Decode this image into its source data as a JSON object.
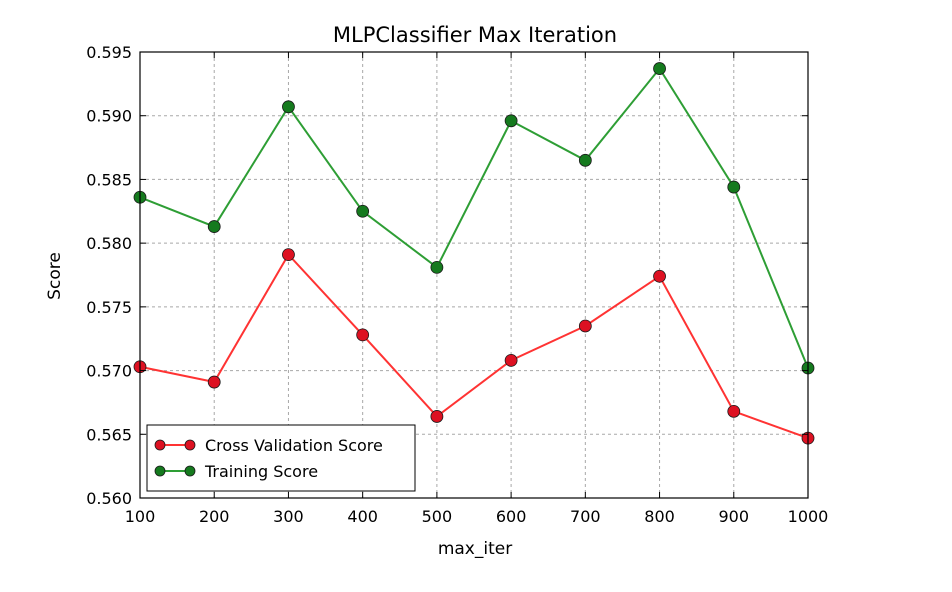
{
  "chart_data": {
    "type": "line",
    "title": "MLPClassifier Max Iteration",
    "xlabel": "max_iter",
    "ylabel": "Score",
    "xlim": [
      100,
      1000
    ],
    "ylim": [
      0.56,
      0.595
    ],
    "x": [
      100,
      200,
      300,
      400,
      500,
      600,
      700,
      800,
      900,
      1000
    ],
    "xticks": [
      100,
      200,
      300,
      400,
      500,
      600,
      700,
      800,
      900,
      1000
    ],
    "yticks": [
      "0.560",
      "0.565",
      "0.570",
      "0.575",
      "0.580",
      "0.585",
      "0.590",
      "0.595"
    ],
    "grid": true,
    "legend_position": "lower-left",
    "series": [
      {
        "name": "Cross Validation Score",
        "color": "#ff3333",
        "marker_color": "#dd1122",
        "values": [
          0.5703,
          0.5691,
          0.5791,
          0.5728,
          0.5664,
          0.5708,
          0.5735,
          0.5774,
          0.5668,
          0.5647
        ]
      },
      {
        "name": "Training Score",
        "color": "#2e9e35",
        "marker_color": "#157a1e",
        "values": [
          0.5836,
          0.5813,
          0.5907,
          0.5825,
          0.5781,
          0.5896,
          0.5865,
          0.5937,
          0.5844,
          0.5702
        ]
      }
    ]
  }
}
